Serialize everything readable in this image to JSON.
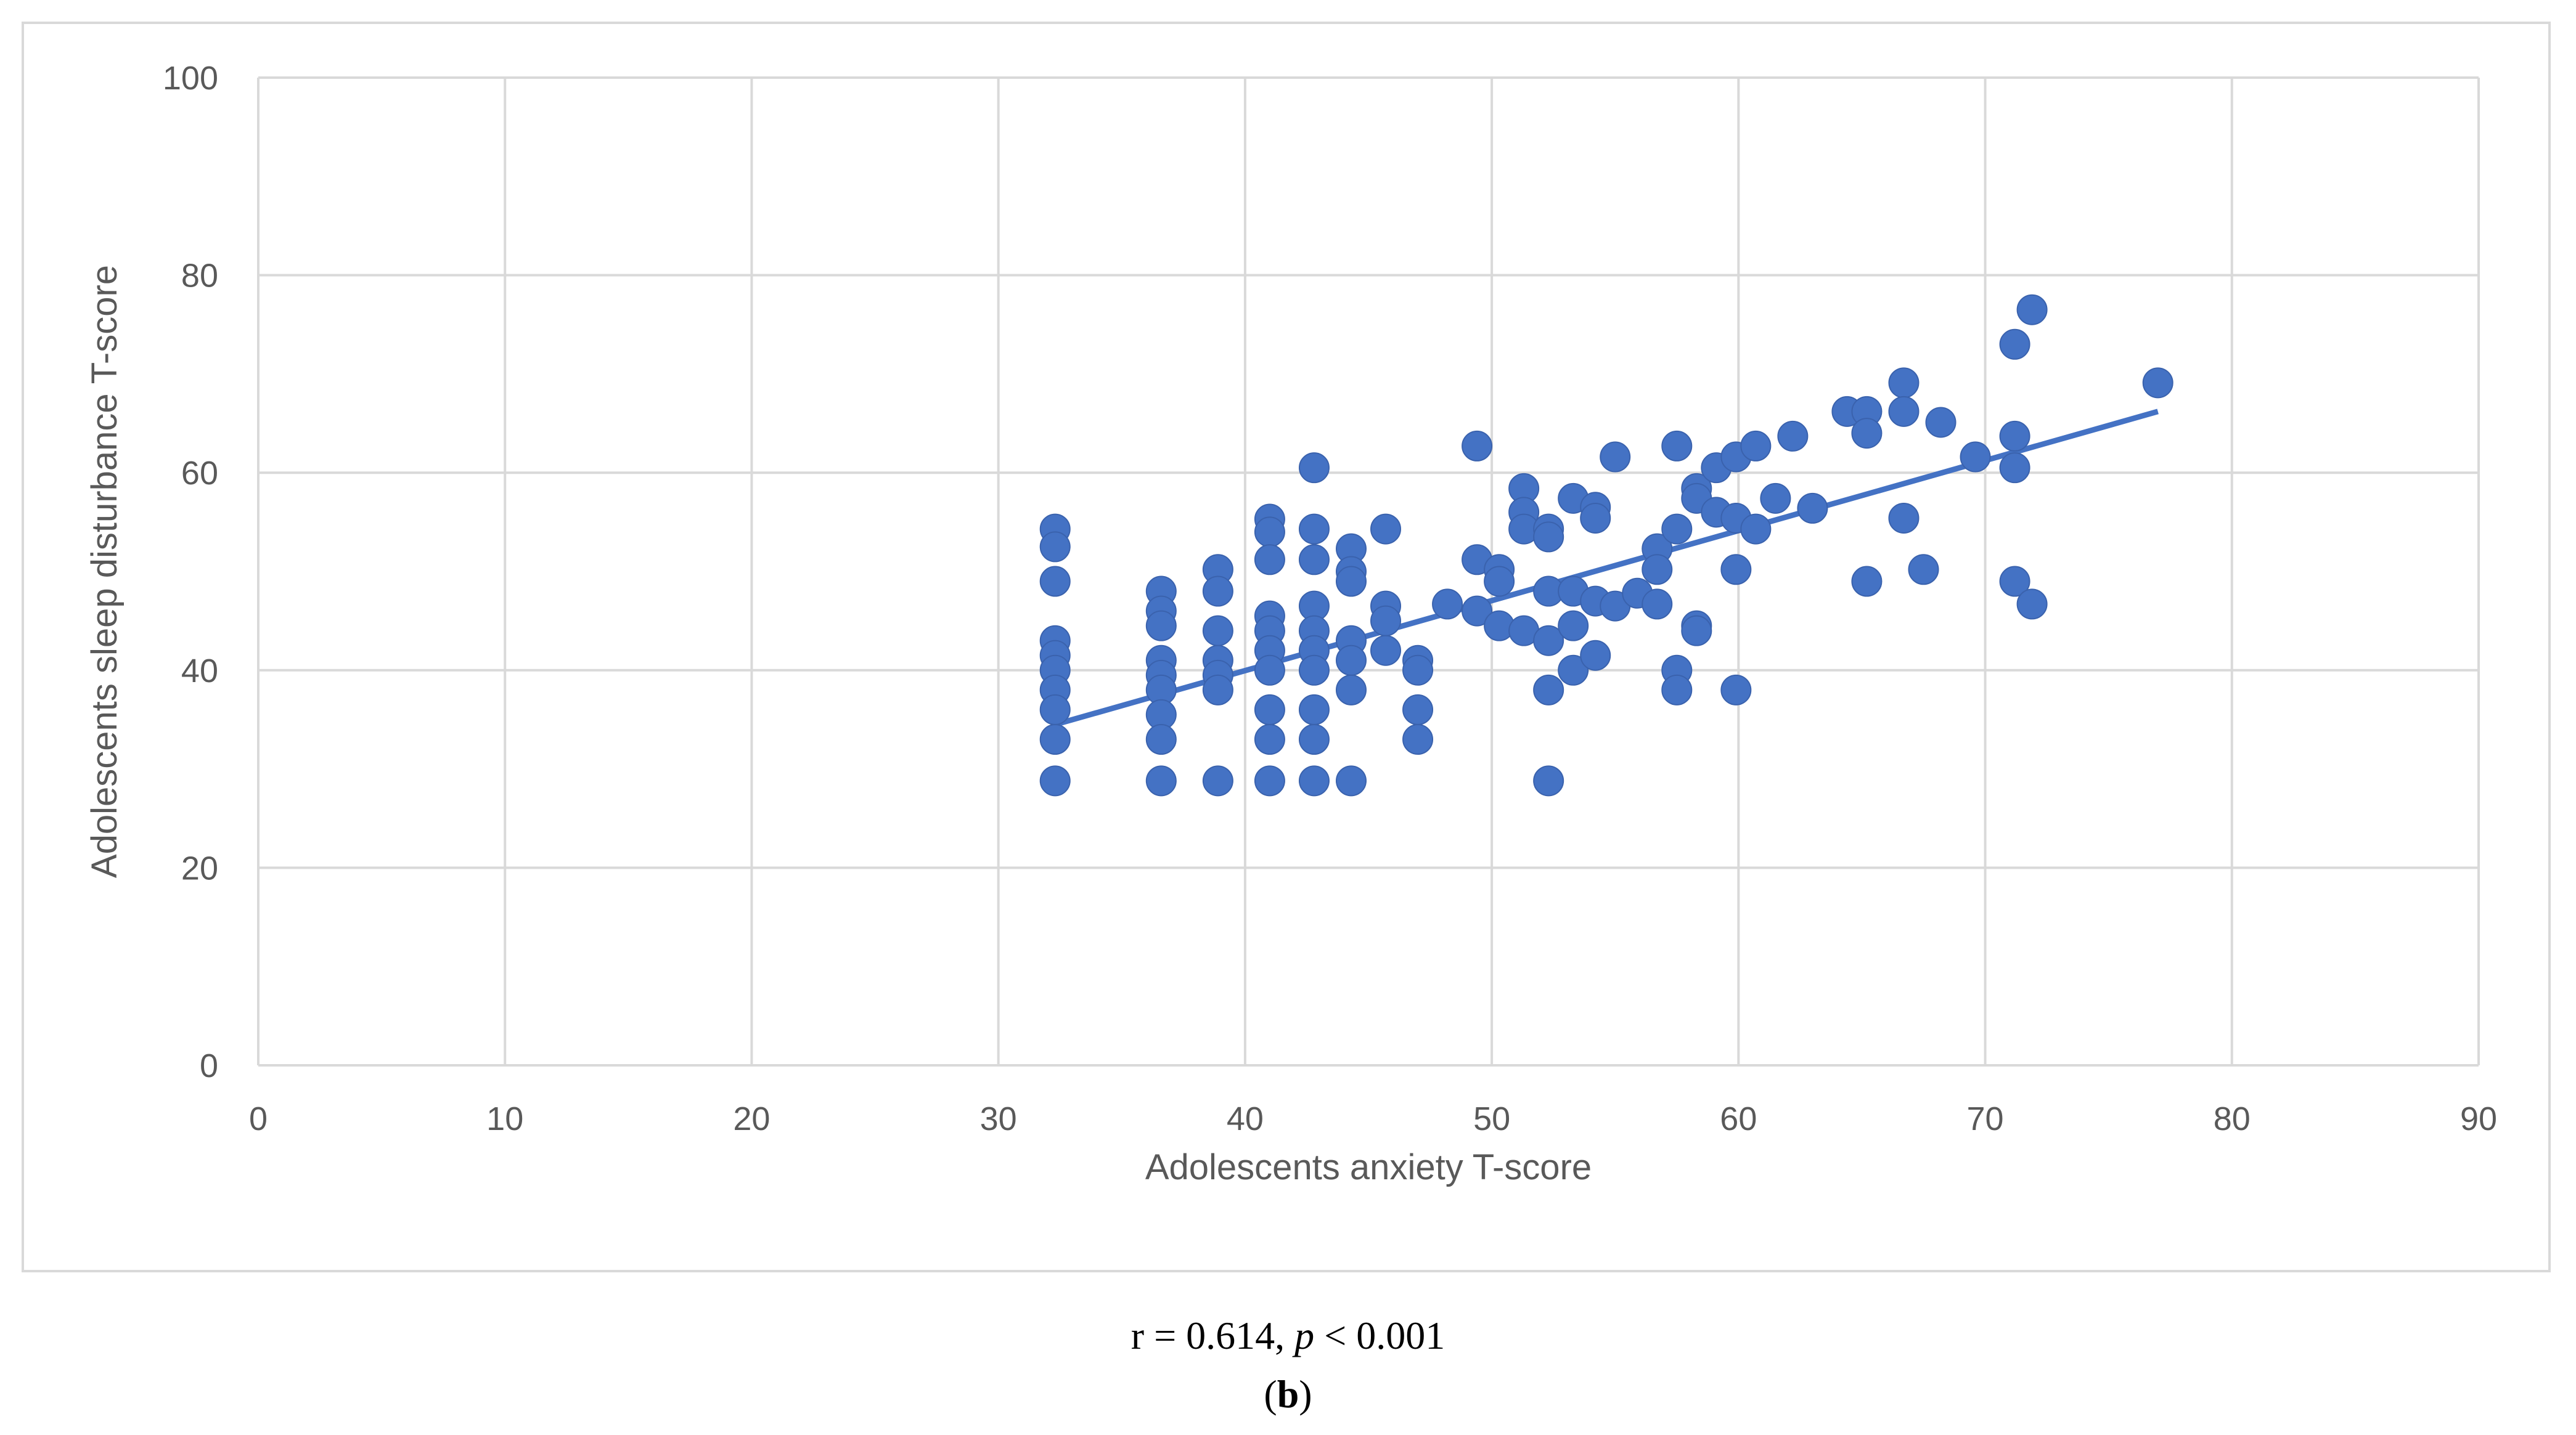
{
  "chart_data": {
    "type": "scatter",
    "title": "",
    "xlabel": "Adolescents anxiety T-score",
    "ylabel": "Adolescents sleep disturbance T-score",
    "xlim": [
      0,
      90
    ],
    "ylim": [
      0,
      100
    ],
    "xticks": [
      0,
      10,
      20,
      30,
      40,
      50,
      60,
      70,
      80,
      90
    ],
    "yticks": [
      0,
      20,
      40,
      60,
      80,
      100
    ],
    "grid": true,
    "legend": "none",
    "point_color": "#4472C4",
    "trendline_color": "#4472C4",
    "series": [
      {
        "points": [
          [
            32.3,
            54.3
          ],
          [
            32.3,
            52.5
          ],
          [
            32.3,
            49.0
          ],
          [
            32.3,
            43.0
          ],
          [
            32.3,
            41.5
          ],
          [
            32.3,
            40.0
          ],
          [
            32.3,
            38.0
          ],
          [
            32.3,
            36.0
          ],
          [
            32.3,
            33.0
          ],
          [
            32.3,
            28.8
          ],
          [
            36.6,
            48.0
          ],
          [
            36.6,
            46.0
          ],
          [
            36.6,
            44.5
          ],
          [
            36.6,
            41.0
          ],
          [
            36.6,
            39.5
          ],
          [
            36.6,
            38.0
          ],
          [
            36.6,
            35.5
          ],
          [
            36.6,
            33.0
          ],
          [
            36.6,
            28.8
          ],
          [
            38.9,
            50.2
          ],
          [
            38.9,
            48.0
          ],
          [
            38.9,
            44.0
          ],
          [
            38.9,
            41.0
          ],
          [
            38.9,
            39.5
          ],
          [
            38.9,
            38.0
          ],
          [
            38.9,
            28.8
          ],
          [
            41.0,
            55.3
          ],
          [
            41.0,
            54.0
          ],
          [
            41.0,
            51.2
          ],
          [
            41.0,
            45.5
          ],
          [
            41.0,
            44.0
          ],
          [
            41.0,
            42.0
          ],
          [
            41.0,
            40.0
          ],
          [
            41.0,
            36.0
          ],
          [
            41.0,
            33.0
          ],
          [
            41.0,
            28.8
          ],
          [
            42.8,
            60.5
          ],
          [
            42.8,
            54.3
          ],
          [
            42.8,
            51.2
          ],
          [
            42.8,
            46.5
          ],
          [
            42.8,
            44.0
          ],
          [
            42.8,
            42.0
          ],
          [
            42.8,
            40.0
          ],
          [
            42.8,
            36.0
          ],
          [
            42.8,
            33.0
          ],
          [
            42.8,
            28.8
          ],
          [
            44.3,
            52.3
          ],
          [
            44.3,
            50.0
          ],
          [
            44.3,
            49.0
          ],
          [
            44.3,
            43.0
          ],
          [
            44.3,
            41.0
          ],
          [
            44.3,
            38.0
          ],
          [
            44.3,
            28.8
          ],
          [
            45.7,
            54.3
          ],
          [
            45.7,
            46.5
          ],
          [
            45.7,
            45.0
          ],
          [
            45.7,
            42.0
          ],
          [
            47.0,
            41.0
          ],
          [
            47.0,
            40.0
          ],
          [
            47.0,
            36.0
          ],
          [
            47.0,
            33.0
          ],
          [
            48.2,
            46.7
          ],
          [
            49.4,
            62.7
          ],
          [
            49.4,
            51.2
          ],
          [
            49.4,
            46.0
          ],
          [
            50.3,
            50.2
          ],
          [
            50.3,
            49.0
          ],
          [
            50.3,
            44.5
          ],
          [
            51.3,
            58.4
          ],
          [
            51.3,
            56.0
          ],
          [
            51.3,
            54.3
          ],
          [
            51.3,
            44.0
          ],
          [
            52.3,
            54.3
          ],
          [
            52.3,
            53.5
          ],
          [
            52.3,
            48.0
          ],
          [
            52.3,
            43.0
          ],
          [
            52.3,
            38.0
          ],
          [
            52.3,
            28.8
          ],
          [
            53.3,
            57.4
          ],
          [
            53.3,
            48.0
          ],
          [
            53.3,
            44.5
          ],
          [
            53.3,
            40.0
          ],
          [
            54.2,
            56.5
          ],
          [
            54.2,
            55.4
          ],
          [
            54.2,
            47.0
          ],
          [
            54.2,
            41.5
          ],
          [
            55.0,
            61.6
          ],
          [
            55.0,
            46.5
          ],
          [
            55.9,
            47.8
          ],
          [
            56.7,
            52.3
          ],
          [
            56.7,
            50.2
          ],
          [
            56.7,
            46.7
          ],
          [
            57.5,
            62.7
          ],
          [
            57.5,
            54.3
          ],
          [
            57.5,
            40.0
          ],
          [
            57.5,
            38.0
          ],
          [
            58.3,
            58.4
          ],
          [
            58.3,
            57.4
          ],
          [
            58.3,
            44.5
          ],
          [
            58.3,
            44.0
          ],
          [
            59.1,
            60.5
          ],
          [
            59.1,
            56.0
          ],
          [
            59.9,
            61.6
          ],
          [
            59.9,
            55.4
          ],
          [
            59.9,
            50.2
          ],
          [
            59.9,
            38.0
          ],
          [
            60.7,
            62.7
          ],
          [
            60.7,
            54.3
          ],
          [
            61.5,
            57.4
          ],
          [
            62.2,
            63.7
          ],
          [
            63.0,
            56.4
          ],
          [
            64.4,
            66.2
          ],
          [
            65.2,
            66.2
          ],
          [
            65.2,
            64.0
          ],
          [
            65.2,
            49.0
          ],
          [
            66.7,
            69.1
          ],
          [
            66.7,
            66.2
          ],
          [
            66.7,
            55.4
          ],
          [
            67.5,
            50.2
          ],
          [
            68.2,
            65.1
          ],
          [
            69.6,
            61.6
          ],
          [
            71.2,
            73.0
          ],
          [
            71.2,
            63.7
          ],
          [
            71.2,
            60.5
          ],
          [
            71.2,
            49.0
          ],
          [
            71.9,
            76.5
          ],
          [
            71.9,
            46.7
          ],
          [
            77.0,
            69.1
          ]
        ]
      }
    ],
    "trendline": {
      "x": [
        32.3,
        77.0
      ],
      "y": [
        34.5,
        66.2
      ]
    }
  },
  "caption": {
    "prefix": "r = 0.614, ",
    "p_symbol": "p",
    "suffix": " < 0.001",
    "panel_open": "(",
    "panel_letter": "b",
    "panel_close": ")"
  }
}
